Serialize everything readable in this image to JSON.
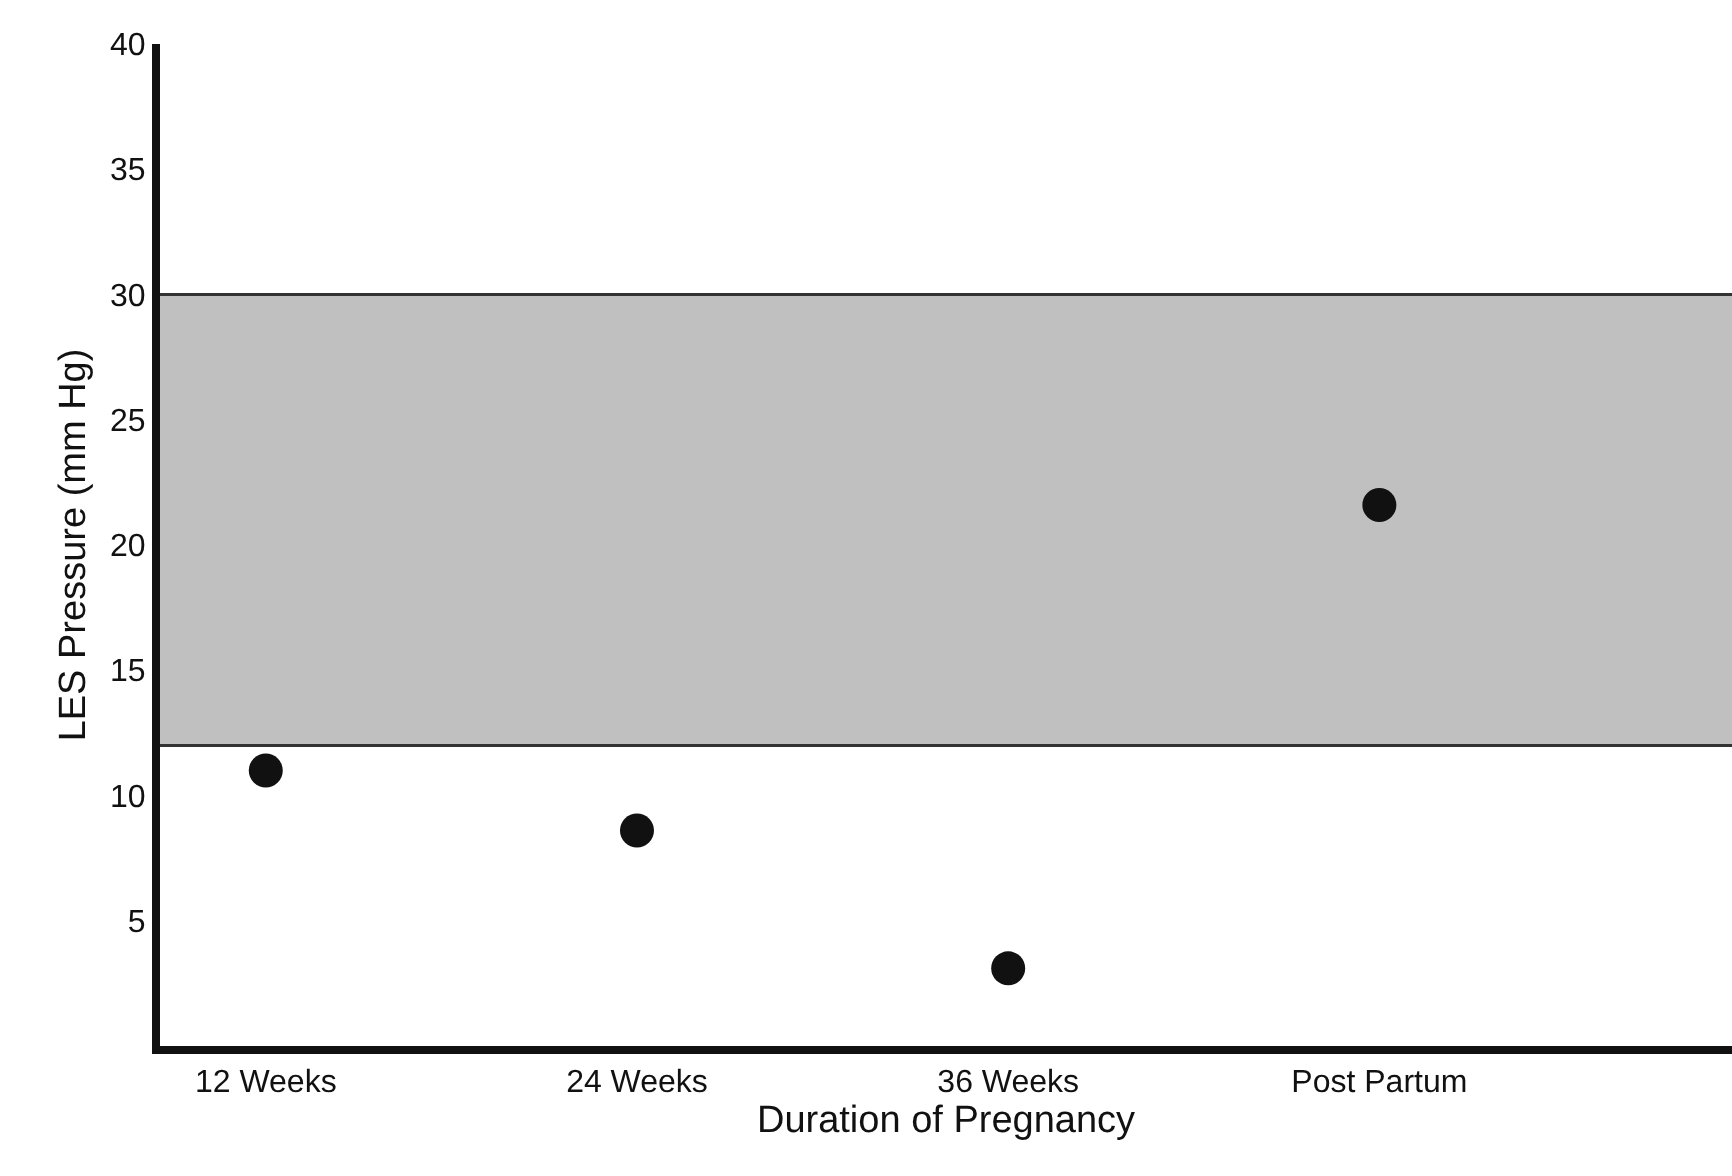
{
  "chart_data": {
    "type": "scatter",
    "xlabel": "Duration of Pregnancy",
    "ylabel": "LES Pressure (mm Hg)",
    "categories": [
      "12 Weeks",
      "24 Weeks",
      "36 Weeks",
      "Post Partum"
    ],
    "series": [
      {
        "color": "#111111",
        "values": [
          11,
          8.6,
          3.1,
          21.6
        ]
      }
    ],
    "ylim": [
      0,
      40
    ],
    "yticks": [
      5,
      10,
      15,
      20,
      25,
      30,
      35,
      40
    ],
    "bands": [
      {
        "axis": "y",
        "from": 12,
        "to": 30,
        "color": "#c0c0c0"
      }
    ],
    "marker": "circle"
  }
}
